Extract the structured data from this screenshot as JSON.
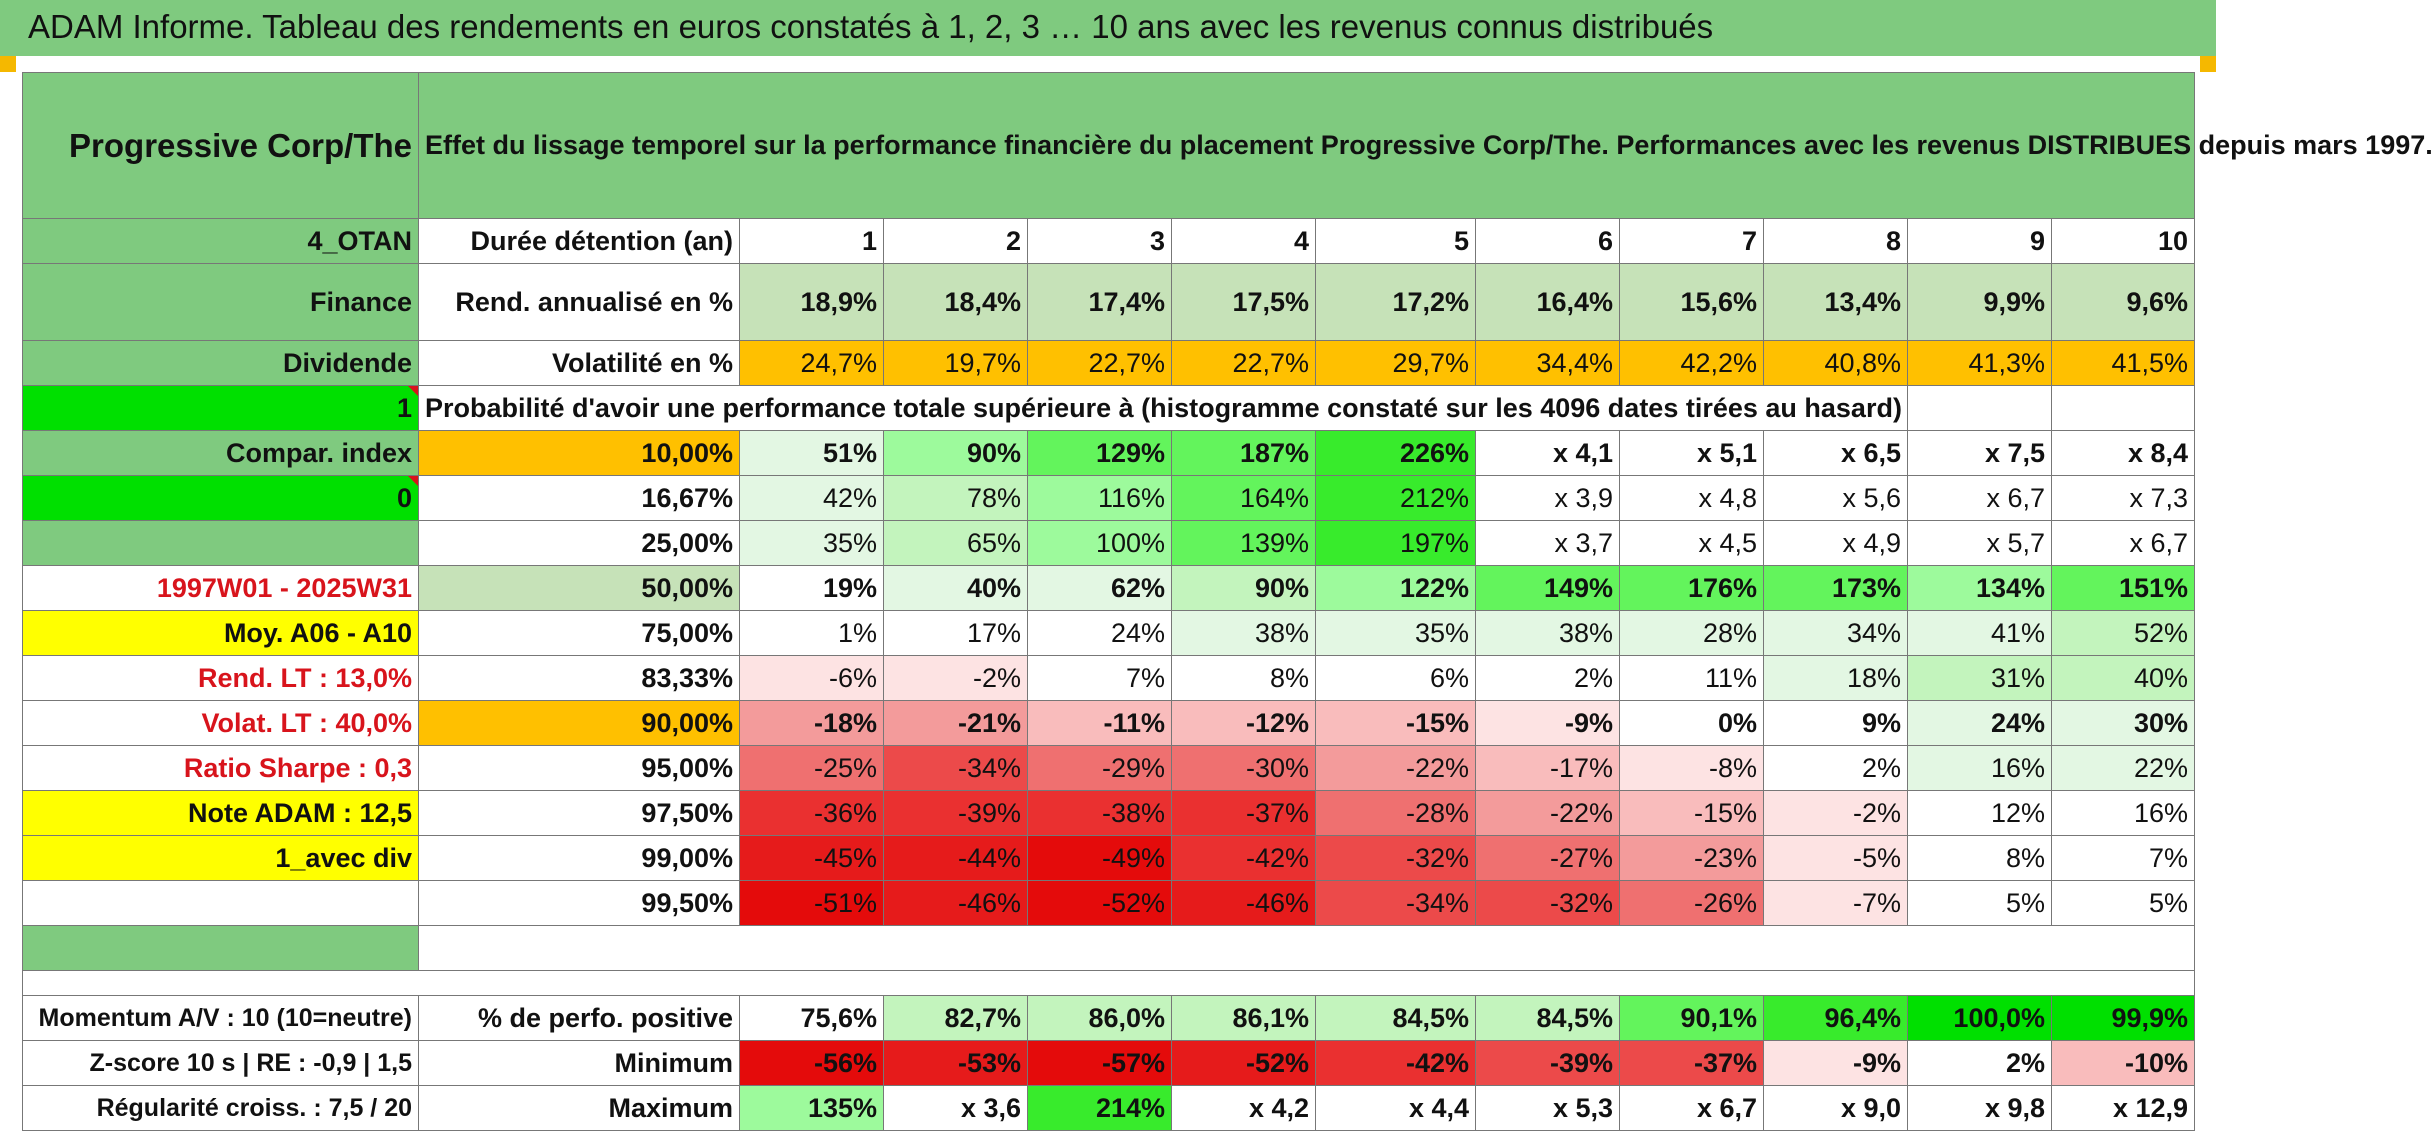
{
  "title": "ADAM Informe. Tableau des rendements en euros constatés à 1, 2, 3 … 10 ans avec les revenus connus distribués",
  "header": {
    "name": "Progressive Corp/The",
    "description": "Effet du lissage temporel sur la performance financière du placement Progressive Corp/The. Performances avec les revenus DISTRIBUES depuis mars 1997."
  },
  "left_labels": {
    "code": "4_OTAN",
    "sector": "Finance",
    "dist": "Dividende",
    "flag1": "1",
    "compar": "Compar. index",
    "flag0": "0",
    "period": "1997W01 - 2025W31",
    "moy": "Moy. A06 - A10",
    "rend_lt": "Rend. LT :    13,0%",
    "volat_lt": "Volat. LT :    40,0%",
    "sharpe": "Ratio Sharpe :    0,3",
    "note": "Note ADAM : 12,5",
    "avec_div": "1_avec div",
    "momentum": "Momentum A/V : 10 (10=neutre)",
    "zscore": "Z-score 10 s | RE : -0,9 | 1,5",
    "regularite": "Régularité croiss. : 7,5 / 20"
  },
  "row_labels": {
    "duree": "Durée détention (an)",
    "rend": "Rend. annualisé en %",
    "volat": "Volatilité en %",
    "prob": "Probabilité d'avoir une performance totale supérieure à (histogramme constaté sur les 4096 dates tirées au hasard)",
    "pos": "% de perfo. positive",
    "min": "Minimum",
    "max": "Maximum"
  },
  "years": [
    "1",
    "2",
    "3",
    "4",
    "5",
    "6",
    "7",
    "8",
    "9",
    "10"
  ],
  "rend": [
    "18,9%",
    "18,4%",
    "17,4%",
    "17,5%",
    "17,2%",
    "16,4%",
    "15,6%",
    "13,4%",
    "9,9%",
    "9,6%"
  ],
  "volat": [
    "24,7%",
    "19,7%",
    "22,7%",
    "22,7%",
    "29,7%",
    "34,4%",
    "42,2%",
    "40,8%",
    "41,3%",
    "41,5%"
  ],
  "prob_rows": [
    {
      "p": "10,00%",
      "v": [
        "51%",
        "90%",
        "129%",
        "187%",
        "226%",
        "x 4,1",
        "x 5,1",
        "x 6,5",
        "x 7,5",
        "x 8,4"
      ]
    },
    {
      "p": "16,67%",
      "v": [
        "42%",
        "78%",
        "116%",
        "164%",
        "212%",
        "x 3,9",
        "x 4,8",
        "x 5,6",
        "x 6,7",
        "x 7,3"
      ]
    },
    {
      "p": "25,00%",
      "v": [
        "35%",
        "65%",
        "100%",
        "139%",
        "197%",
        "x 3,7",
        "x 4,5",
        "x 4,9",
        "x 5,7",
        "x 6,7"
      ]
    },
    {
      "p": "50,00%",
      "v": [
        "19%",
        "40%",
        "62%",
        "90%",
        "122%",
        "149%",
        "176%",
        "173%",
        "134%",
        "151%"
      ]
    },
    {
      "p": "75,00%",
      "v": [
        "1%",
        "17%",
        "24%",
        "38%",
        "35%",
        "38%",
        "28%",
        "34%",
        "41%",
        "52%"
      ]
    },
    {
      "p": "83,33%",
      "v": [
        "-6%",
        "-2%",
        "7%",
        "8%",
        "6%",
        "2%",
        "11%",
        "18%",
        "31%",
        "40%"
      ]
    },
    {
      "p": "90,00%",
      "v": [
        "-18%",
        "-21%",
        "-11%",
        "-12%",
        "-15%",
        "-9%",
        "0%",
        "9%",
        "24%",
        "30%"
      ]
    },
    {
      "p": "95,00%",
      "v": [
        "-25%",
        "-34%",
        "-29%",
        "-30%",
        "-22%",
        "-17%",
        "-8%",
        "2%",
        "16%",
        "22%"
      ]
    },
    {
      "p": "97,50%",
      "v": [
        "-36%",
        "-39%",
        "-38%",
        "-37%",
        "-28%",
        "-22%",
        "-15%",
        "-2%",
        "12%",
        "16%"
      ]
    },
    {
      "p": "99,00%",
      "v": [
        "-45%",
        "-44%",
        "-49%",
        "-42%",
        "-32%",
        "-27%",
        "-23%",
        "-5%",
        "8%",
        "7%"
      ]
    },
    {
      "p": "99,50%",
      "v": [
        "-51%",
        "-46%",
        "-52%",
        "-46%",
        "-34%",
        "-32%",
        "-26%",
        "-7%",
        "5%",
        "5%"
      ]
    }
  ],
  "pos": [
    "75,6%",
    "82,7%",
    "86,0%",
    "86,1%",
    "84,5%",
    "84,5%",
    "90,1%",
    "96,4%",
    "100,0%",
    "99,9%"
  ],
  "min": [
    "-56%",
    "-53%",
    "-57%",
    "-52%",
    "-42%",
    "-39%",
    "-37%",
    "-9%",
    "2%",
    "-10%"
  ],
  "max": [
    "135%",
    "x 3,6",
    "214%",
    "x 4,2",
    "x 4,4",
    "x 5,3",
    "x 6,7",
    "x 9,0",
    "x 9,8",
    "x 12,9"
  ],
  "colors": {
    "header_green": "#7fca7f",
    "orange": "#ffc000",
    "yellow": "#ffff00",
    "bright_green": "#00e000",
    "label_red": "#d8141c"
  }
}
